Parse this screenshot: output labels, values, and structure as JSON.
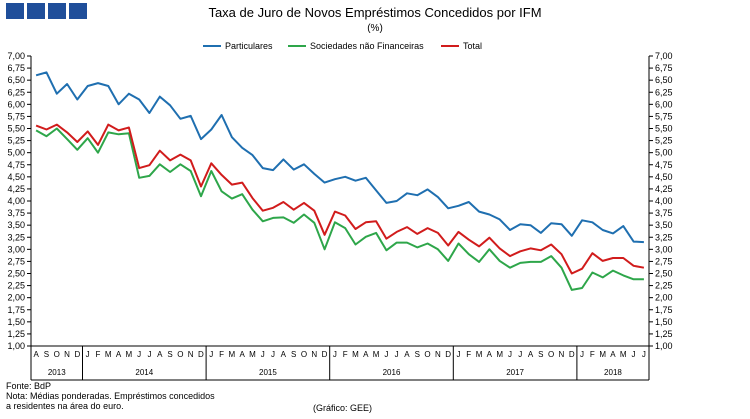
{
  "page": {
    "title": "Taxa de Juro de Novos Empréstimos Concedidos por IFM",
    "subtitle": "(%)",
    "source": "Fonte: BdP",
    "note_line1": "Nota: Médias ponderadas.  Empréstimos concedidos",
    "note_line2": "a residentes na área do euro.",
    "credit": "(Gráfico: GEE)",
    "logo_icon": "institution-logo-icon"
  },
  "chart_data": {
    "type": "line",
    "title": "Taxa de Juro de Novos Empréstimos Concedidos por IFM",
    "subtitle": "(%)",
    "ylim": [
      1.0,
      7.0
    ],
    "y_ticks": [
      "1,00",
      "1,25",
      "1,50",
      "1,75",
      "2,00",
      "2,25",
      "2,50",
      "2,75",
      "3,00",
      "3,25",
      "3,50",
      "3,75",
      "4,00",
      "4,25",
      "4,50",
      "4,75",
      "5,00",
      "5,25",
      "5,50",
      "5,75",
      "6,00",
      "6,25",
      "6,50",
      "6,75",
      "7,00"
    ],
    "month_labels": [
      "A",
      "S",
      "O",
      "N",
      "D",
      "J",
      "F",
      "M",
      "A",
      "M",
      "J",
      "J",
      "A",
      "S",
      "O",
      "N",
      "D",
      "J",
      "F",
      "M",
      "A",
      "M",
      "J",
      "J",
      "A",
      "S",
      "O",
      "N",
      "D",
      "J",
      "F",
      "M",
      "A",
      "M",
      "J",
      "J",
      "A",
      "S",
      "O",
      "N",
      "D",
      "J",
      "F",
      "M",
      "A",
      "M",
      "J",
      "J",
      "A",
      "S",
      "O",
      "N",
      "D",
      "J",
      "F",
      "M",
      "A",
      "M",
      "J",
      "J"
    ],
    "year_groups": [
      {
        "label": "2013",
        "count": 5
      },
      {
        "label": "2014",
        "count": 12
      },
      {
        "label": "2015",
        "count": 12
      },
      {
        "label": "2016",
        "count": 12
      },
      {
        "label": "2017",
        "count": 12
      },
      {
        "label": "2018",
        "count": 7
      }
    ],
    "grid": false,
    "legend_position": "top",
    "series": [
      {
        "name": "Particulares",
        "color": "#1f6fb0",
        "values": [
          6.6,
          6.66,
          6.22,
          6.42,
          6.1,
          6.38,
          6.44,
          6.38,
          6.0,
          6.22,
          6.1,
          5.82,
          6.16,
          5.98,
          5.7,
          5.76,
          5.28,
          5.48,
          5.78,
          5.32,
          5.1,
          4.95,
          4.68,
          4.64,
          4.86,
          4.65,
          4.76,
          4.56,
          4.38,
          4.45,
          4.5,
          4.42,
          4.48,
          4.22,
          3.96,
          4.0,
          4.16,
          4.12,
          4.24,
          4.08,
          3.85,
          3.9,
          3.98,
          3.78,
          3.72,
          3.62,
          3.4,
          3.52,
          3.5,
          3.34,
          3.54,
          3.52,
          3.28,
          3.6,
          3.56,
          3.4,
          3.33,
          3.48,
          3.16,
          3.15
        ]
      },
      {
        "name": "Sociedades não Financeiras",
        "color": "#2ea64a",
        "values": [
          5.46,
          5.34,
          5.5,
          5.28,
          5.06,
          5.3,
          5.0,
          5.42,
          5.38,
          5.4,
          4.48,
          4.52,
          4.76,
          4.6,
          4.76,
          4.62,
          4.1,
          4.62,
          4.2,
          4.05,
          4.14,
          3.82,
          3.58,
          3.65,
          3.66,
          3.55,
          3.72,
          3.55,
          3.0,
          3.56,
          3.44,
          3.1,
          3.26,
          3.34,
          2.98,
          3.14,
          3.14,
          3.04,
          3.12,
          3.0,
          2.76,
          3.12,
          2.9,
          2.74,
          3.0,
          2.76,
          2.62,
          2.72,
          2.74,
          2.74,
          2.86,
          2.62,
          2.16,
          2.2,
          2.52,
          2.42,
          2.56,
          2.46,
          2.38,
          2.38
        ]
      },
      {
        "name": "Total",
        "color": "#d11c1c",
        "values": [
          5.56,
          5.48,
          5.58,
          5.42,
          5.22,
          5.44,
          5.16,
          5.58,
          5.46,
          5.52,
          4.68,
          4.74,
          5.04,
          4.84,
          4.96,
          4.84,
          4.3,
          4.78,
          4.54,
          4.34,
          4.38,
          4.06,
          3.8,
          3.86,
          3.98,
          3.82,
          3.96,
          3.8,
          3.3,
          3.78,
          3.7,
          3.42,
          3.56,
          3.58,
          3.22,
          3.36,
          3.46,
          3.32,
          3.44,
          3.34,
          3.08,
          3.36,
          3.2,
          3.06,
          3.24,
          3.02,
          2.86,
          2.96,
          3.02,
          2.98,
          3.1,
          2.9,
          2.5,
          2.6,
          2.92,
          2.76,
          2.82,
          2.82,
          2.66,
          2.62
        ]
      }
    ]
  }
}
